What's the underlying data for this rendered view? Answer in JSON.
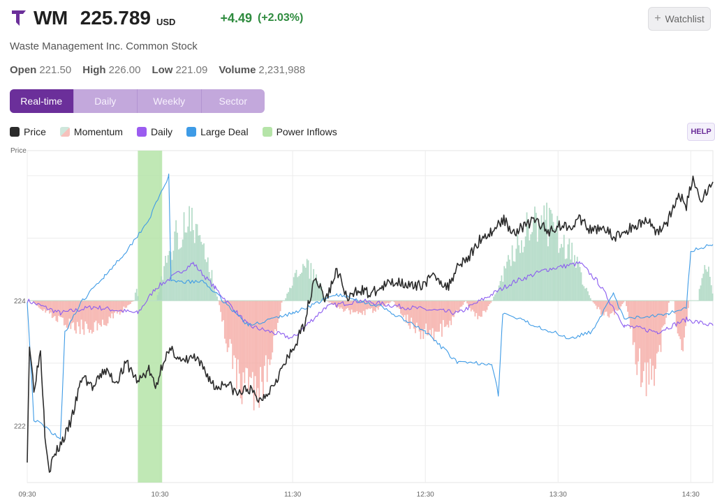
{
  "header": {
    "symbol": "WM",
    "price": "225.789",
    "currency": "USD",
    "change": "+4.49",
    "change_pct": "(+2.03%)",
    "company": "Waste Management Inc. Common Stock",
    "watchlist_label": "Watchlist",
    "help_label": "HELP"
  },
  "stats": [
    {
      "label": "Open",
      "value": "221.50"
    },
    {
      "label": "High",
      "value": "226.00"
    },
    {
      "label": "Low",
      "value": "221.09"
    },
    {
      "label": "Volume",
      "value": "2,231,988"
    }
  ],
  "tabs": [
    {
      "label": "Real-time",
      "active": true
    },
    {
      "label": "Daily",
      "active": false
    },
    {
      "label": "Weekly",
      "active": false
    },
    {
      "label": "Sector",
      "active": false
    }
  ],
  "legend": [
    {
      "label": "Price",
      "icon": "price-swatch"
    },
    {
      "label": "Momentum",
      "icon": "momentum-swatch"
    },
    {
      "label": "Daily",
      "icon": "daily-swatch"
    },
    {
      "label": "Large Deal",
      "icon": "large-deal-swatch"
    },
    {
      "label": "Power Inflows",
      "icon": "power-inflows-swatch"
    }
  ],
  "colors": {
    "accent": "#6b2f9a",
    "up": "#2e8b3e",
    "price": "#2b2b2b",
    "daily": "#8b5cf0",
    "large_deal": "#3e9be6",
    "momentum_pos": "#a9d6c0",
    "momentum_neg": "#f4aaa4",
    "power_inflows": "#b5e4a8"
  },
  "chart_data": {
    "type": "line",
    "ylabel": "Price",
    "ylim": [
      221.09,
      226.4
    ],
    "yticks": [
      222,
      224
    ],
    "xlim": [
      "09:30",
      "14:40"
    ],
    "xticks": [
      "09:30",
      "10:30",
      "11:30",
      "12:30",
      "13:30",
      "14:30"
    ],
    "grid": true,
    "power_inflows": [
      {
        "start": "10:20",
        "end": "10:31"
      }
    ],
    "series": [
      {
        "name": "Price",
        "x": [
          "09:30",
          "09:31",
          "09:33",
          "09:36",
          "09:38",
          "09:40",
          "09:42",
          "09:45",
          "09:48",
          "09:50",
          "09:55",
          "10:00",
          "10:05",
          "10:10",
          "10:15",
          "10:20",
          "10:25",
          "10:28",
          "10:32",
          "10:36",
          "10:40",
          "10:45",
          "10:50",
          "10:55",
          "11:00",
          "11:05",
          "11:10",
          "11:15",
          "11:20",
          "11:25",
          "11:30",
          "11:35",
          "11:40",
          "11:45",
          "11:50",
          "11:55",
          "12:00",
          "12:05",
          "12:10",
          "12:15",
          "12:20",
          "12:25",
          "12:30",
          "12:35",
          "12:40",
          "12:45",
          "12:50",
          "12:55",
          "13:00",
          "13:05",
          "13:10",
          "13:15",
          "13:20",
          "13:25",
          "13:30",
          "13:35",
          "13:40",
          "13:45",
          "13:50",
          "13:55",
          "14:00",
          "14:05",
          "14:10",
          "14:15",
          "14:20",
          "14:25",
          "14:28",
          "14:31",
          "14:34",
          "14:38",
          "14:40"
        ],
        "values": [
          221.5,
          223.3,
          222.6,
          223.2,
          221.9,
          221.3,
          221.5,
          221.7,
          221.9,
          222.1,
          222.8,
          222.6,
          222.9,
          222.7,
          223.0,
          222.7,
          222.9,
          222.6,
          223.1,
          223.2,
          223.0,
          223.1,
          222.9,
          222.6,
          222.7,
          222.5,
          222.6,
          222.4,
          222.6,
          222.9,
          223.2,
          223.6,
          224.4,
          224.0,
          224.5,
          224.0,
          224.2,
          224.1,
          224.2,
          224.3,
          224.3,
          224.2,
          224.3,
          224.4,
          224.2,
          224.6,
          224.7,
          225.0,
          225.1,
          225.3,
          225.1,
          225.2,
          225.3,
          225.1,
          225.2,
          225.2,
          225.3,
          225.1,
          225.2,
          225.0,
          225.1,
          225.2,
          225.3,
          225.1,
          225.3,
          225.7,
          225.5,
          226.0,
          225.6,
          225.8,
          225.9
        ]
      },
      {
        "name": "Daily"
      },
      {
        "name": "Large Deal"
      },
      {
        "name": "Momentum"
      }
    ]
  }
}
